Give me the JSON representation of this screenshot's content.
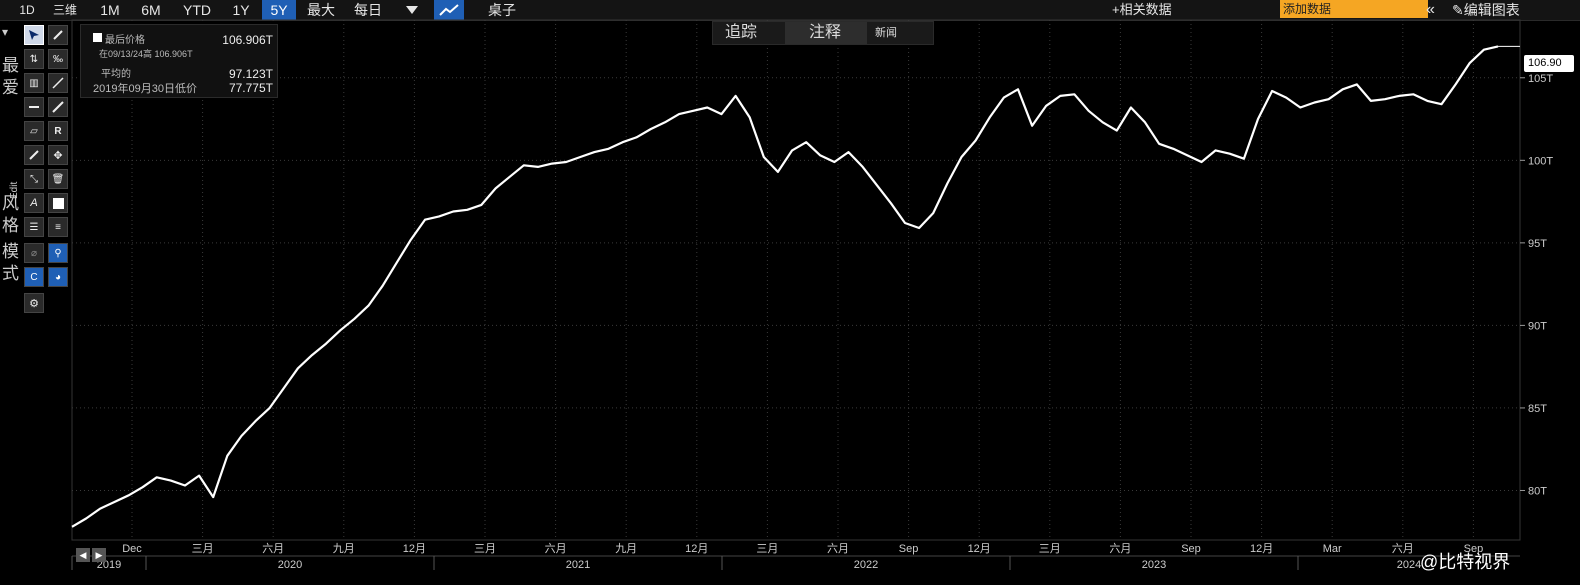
{
  "topbar": {
    "ranges": [
      "1D",
      "三维",
      "1M",
      "6M",
      "YTD",
      "1Y",
      "5Y",
      "最大"
    ],
    "active_range": "5Y",
    "frequency": "每日",
    "title": "桌子",
    "related_data": "+相关数据",
    "add_data_placeholder": "添加数据",
    "edit_chart": "编辑图表"
  },
  "sidebar": {
    "favorites_label": "最爱",
    "edit_label": "Edit",
    "style_label": "风格",
    "mode_label": "模式"
  },
  "legend": {
    "last_price_label": "最后价格",
    "last_price_value": "106.906T",
    "last_price_date": "在09/13/24高 106.906T",
    "average_label": "平均的",
    "average_value": "97.123T",
    "low_label": "2019年09月30日低价",
    "low_value": "77.775T"
  },
  "tabs": [
    "追踪",
    "注释",
    "新闻"
  ],
  "active_tab": "注释",
  "price_tag": "106.90",
  "watermark": "@比特视界",
  "chart_data": {
    "type": "line",
    "x_start": "2019-09-30",
    "x_end": "2024-09-13",
    "x_tick_labels": [
      "Dec",
      "三月",
      "六月",
      "九月",
      "12月",
      "三月",
      "六月",
      "九月",
      "12月",
      "三月",
      "六月",
      "Sep",
      "12月",
      "三月",
      "六月",
      "Sep",
      "12月",
      "Mar",
      "六月",
      "Sep"
    ],
    "year_labels": [
      "2019",
      "2020",
      "2021",
      "2022",
      "2023",
      "2024"
    ],
    "y_tick_labels": [
      "80T",
      "85T",
      "90T",
      "95T",
      "100T",
      "105T"
    ],
    "y_ticks": [
      80,
      85,
      90,
      95,
      100,
      105
    ],
    "ylim": [
      77.0,
      108.5
    ],
    "values": [
      77.8,
      78.3,
      78.9,
      79.3,
      79.7,
      80.2,
      80.8,
      80.6,
      80.3,
      80.9,
      79.6,
      82.1,
      83.3,
      84.2,
      85.0,
      86.2,
      87.4,
      88.2,
      88.9,
      89.7,
      90.4,
      91.2,
      92.4,
      93.8,
      95.2,
      96.4,
      96.6,
      96.9,
      97.0,
      97.3,
      98.3,
      99.0,
      99.7,
      99.6,
      99.8,
      99.9,
      100.2,
      100.5,
      100.7,
      101.1,
      101.4,
      101.9,
      102.3,
      102.8,
      103.0,
      103.2,
      102.8,
      103.9,
      102.6,
      100.2,
      99.3,
      100.6,
      101.1,
      100.3,
      99.9,
      100.5,
      99.6,
      98.5,
      97.4,
      96.2,
      95.9,
      96.8,
      98.6,
      100.2,
      101.2,
      102.6,
      103.8,
      104.3,
      102.1,
      103.3,
      103.9,
      104.0,
      103.0,
      102.3,
      101.8,
      103.2,
      102.3,
      101.0,
      100.7,
      100.3,
      99.9,
      100.6,
      100.4,
      100.1,
      102.5,
      104.2,
      103.8,
      103.2,
      103.5,
      103.7,
      104.3,
      104.6,
      103.6,
      103.7,
      103.9,
      104.0,
      103.6,
      103.4,
      104.6,
      105.9,
      106.7,
      106.9
    ]
  }
}
